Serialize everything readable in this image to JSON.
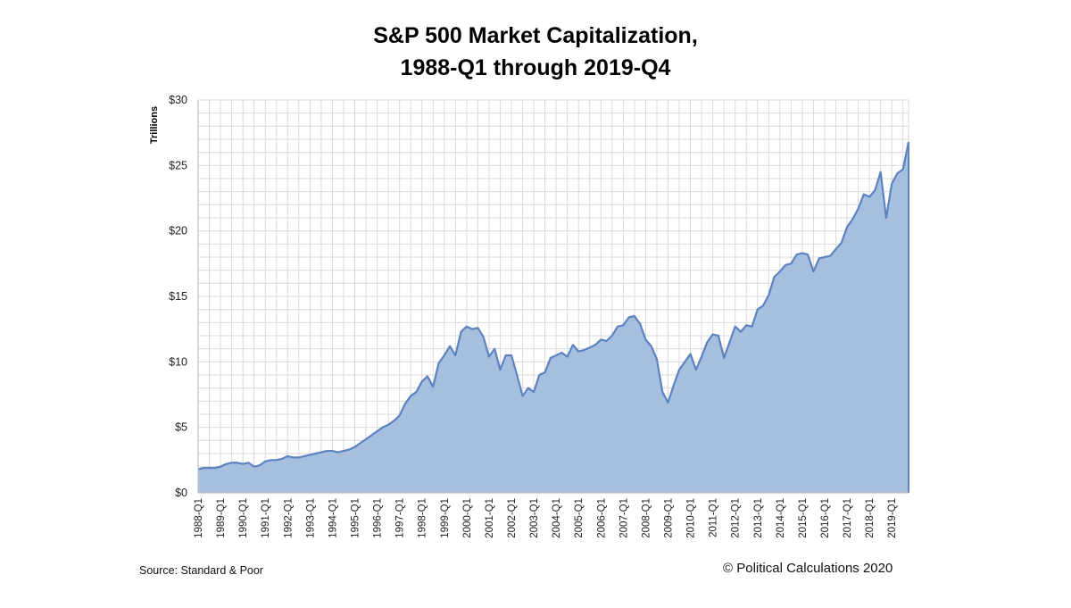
{
  "title": {
    "line1": "S&P 500 Market Capitalization,",
    "line2": "1988-Q1 through 2019-Q4"
  },
  "source": "Source: Standard & Poor",
  "credit": "© Political Calculations 2020",
  "colors": {
    "fill": "#a7bfdf",
    "line": "#5b83c0",
    "grid": "#d9d9d9",
    "axis": "#bfbfbf"
  },
  "chart_data": {
    "type": "area",
    "title": "S&P 500 Market Capitalization, 1988-Q1 through 2019-Q4",
    "ylabel": "Trillions",
    "xlabel": "",
    "ylim": [
      0,
      30
    ],
    "yticks": [
      "$0",
      "$5",
      "$10",
      "$15",
      "$20",
      "$25",
      "$30"
    ],
    "ytick_values": [
      0,
      5,
      10,
      15,
      20,
      25,
      30
    ],
    "xtick_labels": [
      "1988-Q1",
      "1989-Q1",
      "1990-Q1",
      "1991-Q1",
      "1992-Q1",
      "1993-Q1",
      "1994-Q1",
      "1995-Q1",
      "1996-Q1",
      "1997-Q1",
      "1998-Q1",
      "1999-Q1",
      "2000-Q1",
      "2001-Q1",
      "2002-Q1",
      "2003-Q1",
      "2004-Q1",
      "2005-Q1",
      "2006-Q1",
      "2007-Q1",
      "2008-Q1",
      "2009-Q1",
      "2010-Q1",
      "2011-Q1",
      "2012-Q1",
      "2013-Q1",
      "2014-Q1",
      "2015-Q1",
      "2016-Q1",
      "2017-Q1",
      "2018-Q1",
      "2019-Q1"
    ],
    "grid": true,
    "x_start": "1988-Q1",
    "x_end": "2019-Q4",
    "series": [
      {
        "values": [
          1.8,
          1.9,
          1.9,
          1.9,
          2.0,
          2.2,
          2.3,
          2.3,
          2.2,
          2.3,
          2.0,
          2.1,
          2.4,
          2.5,
          2.5,
          2.6,
          2.8,
          2.7,
          2.7,
          2.8,
          2.9,
          3.0,
          3.1,
          3.2,
          3.2,
          3.1,
          3.2,
          3.3,
          3.5,
          3.8,
          4.1,
          4.4,
          4.7,
          5.0,
          5.2,
          5.5,
          5.9,
          6.8,
          7.4,
          7.7,
          8.5,
          8.9,
          8.1,
          9.9,
          10.5,
          11.2,
          10.5,
          12.3,
          12.7,
          12.5,
          12.6,
          11.9,
          10.4,
          11.0,
          9.4,
          10.5,
          10.5,
          9.0,
          7.4,
          8.0,
          7.7,
          9.0,
          9.2,
          10.3,
          10.5,
          10.7,
          10.4,
          11.3,
          10.8,
          10.9,
          11.1,
          11.3,
          11.7,
          11.6,
          12.0,
          12.7,
          12.8,
          13.4,
          13.5,
          12.9,
          11.7,
          11.2,
          10.2,
          7.7,
          6.9,
          8.2,
          9.4,
          10.0,
          10.6,
          9.4,
          10.4,
          11.5,
          12.1,
          12.0,
          10.3,
          11.5,
          12.7,
          12.3,
          12.8,
          12.7,
          14.0,
          14.3,
          15.1,
          16.5,
          16.9,
          17.4,
          17.5,
          18.2,
          18.3,
          18.2,
          16.9,
          17.9,
          18.0,
          18.1,
          18.6,
          19.1,
          20.3,
          20.9,
          21.7,
          22.8,
          22.6,
          23.1,
          24.5,
          21.0,
          23.6,
          24.4,
          24.7,
          26.8
        ]
      }
    ]
  }
}
